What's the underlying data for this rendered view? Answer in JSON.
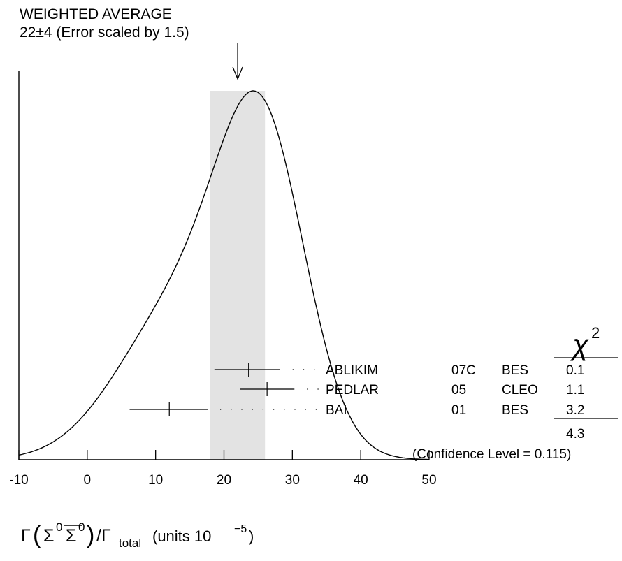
{
  "chart_data": {
    "type": "ideogram",
    "header": {
      "line1": "WEIGHTED AVERAGE",
      "line2": "22±4 (Error scaled by 1.5)"
    },
    "weighted_average": {
      "value": 22,
      "error": 4,
      "band": [
        18,
        26
      ]
    },
    "xlim": [
      -10,
      50
    ],
    "x_ticks": [
      -10,
      0,
      10,
      20,
      30,
      40,
      50
    ],
    "x_tick_labels": [
      "-10",
      "0",
      "10",
      "20",
      "30",
      "40",
      "50"
    ],
    "xlabel": {
      "gamma": "Γ",
      "lparen": "(",
      "sigma": "Σ",
      "sup0": "0",
      "sigma_bar": "Σ",
      "sup0b": "0",
      "rparen": ")",
      "slash_gamma": "/Γ",
      "sub_total": "total",
      "units": "(units 10",
      "units_exp": "−5",
      "units_close": ")"
    },
    "measurements": [
      {
        "author": "ABLIKIM",
        "year": "07C",
        "experiment": "BES",
        "value": 23.6,
        "err_low": 5.0,
        "err_high": 4.6,
        "chi2": "0.1"
      },
      {
        "author": "PEDLAR",
        "year": "05",
        "experiment": "CLEO",
        "value": 26.3,
        "err_low": 4.0,
        "err_high": 4.0,
        "chi2": "1.1"
      },
      {
        "author": "BAI",
        "year": "01",
        "experiment": "BES",
        "value": 12.0,
        "err_low": 5.8,
        "err_high": 5.6,
        "chi2": "3.2"
      }
    ],
    "chi2_header": {
      "symbol": "χ",
      "sup": "2"
    },
    "chi2_total": "4.3",
    "confidence_level": "(Confidence Level = 0.115)"
  }
}
